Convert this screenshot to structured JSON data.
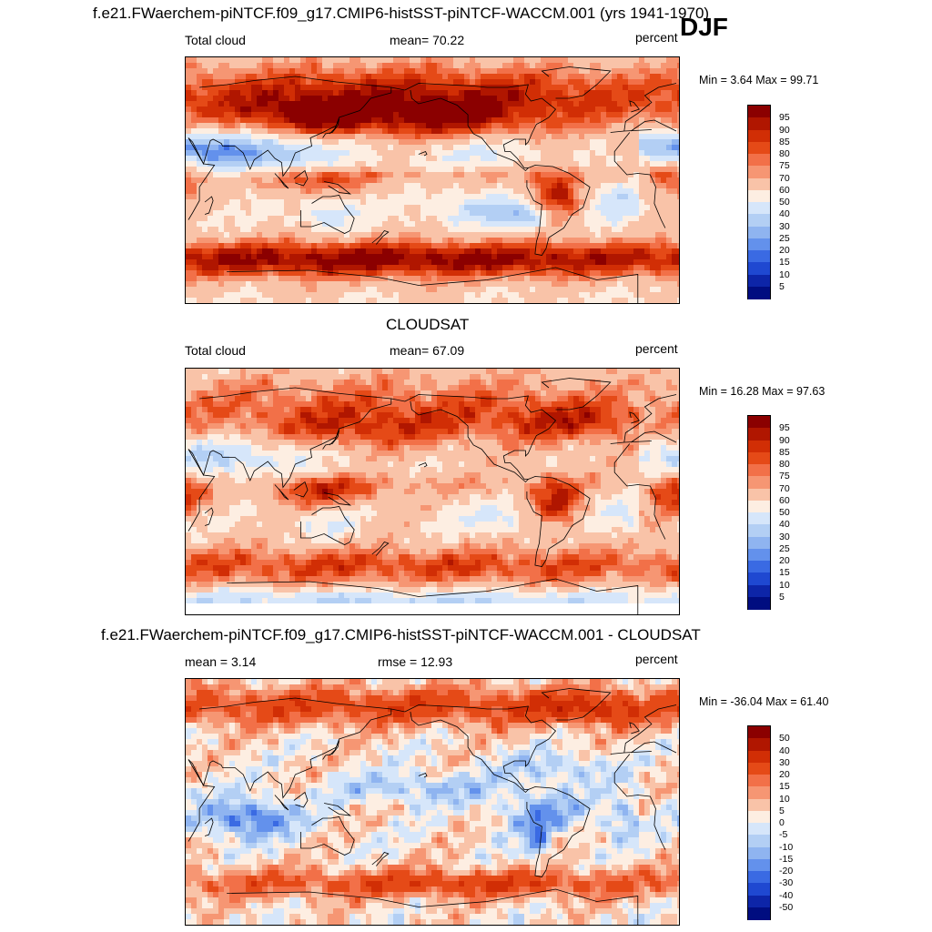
{
  "season_label": "DJF",
  "panels": [
    {
      "heading": "f.e21.FWaerchem-piNTCF.f09_g17.CMIP6-histSST-piNTCF-WACCM.001 (yrs 1941-1970)",
      "left_label": "Total cloud",
      "center_label": "mean=  70.22",
      "units": "percent",
      "minmax": "Min =   3.64 Max =  99.71"
    },
    {
      "heading": "CLOUDSAT",
      "left_label": "Total cloud",
      "center_label": "mean=  67.09",
      "units": "percent",
      "minmax": "Min =  16.28 Max =  97.63"
    },
    {
      "heading": "f.e21.FWaerchem-piNTCF.f09_g17.CMIP6-histSST-piNTCF-WACCM.001 - CLOUDSAT",
      "left_label": "mean =   3.14",
      "center_label": "rmse =  12.93",
      "units": "percent",
      "minmax": "Min = -36.04 Max =  61.40"
    }
  ],
  "chart_data": [
    {
      "type": "heatmap",
      "title": "Total cloud (model, DJF)",
      "field": "model",
      "units": "percent",
      "mean": 70.22,
      "min": 3.64,
      "max": 99.71,
      "levels": [
        "95",
        "90",
        "85",
        "80",
        "75",
        "70",
        "60",
        "50",
        "40",
        "30",
        "25",
        "20",
        "15",
        "10",
        "5"
      ],
      "colors": [
        "#8b0000",
        "#b01600",
        "#d12e05",
        "#e54a17",
        "#f27048",
        "#f69673",
        "#f9c3a8",
        "#fdeee2",
        "#d6e6fa",
        "#b3cff4",
        "#8fb4f0",
        "#6391ec",
        "#3a6ae3",
        "#1f48d1",
        "#0d25a8",
        "#000d80"
      ]
    },
    {
      "type": "heatmap",
      "title": "Total cloud (CLOUDSAT, DJF)",
      "field": "obs",
      "units": "percent",
      "mean": 67.09,
      "min": 16.28,
      "max": 97.63,
      "levels": [
        "95",
        "90",
        "85",
        "80",
        "75",
        "70",
        "60",
        "50",
        "40",
        "30",
        "25",
        "20",
        "15",
        "10",
        "5"
      ],
      "colors": [
        "#8b0000",
        "#b01600",
        "#d12e05",
        "#e54a17",
        "#f27048",
        "#f69673",
        "#f9c3a8",
        "#fdeee2",
        "#d6e6fa",
        "#b3cff4",
        "#8fb4f0",
        "#6391ec",
        "#3a6ae3",
        "#1f48d1",
        "#0d25a8",
        "#000d80"
      ]
    },
    {
      "type": "heatmap",
      "title": "Model - CLOUDSAT (DJF)",
      "field": "diff",
      "units": "percent",
      "mean": 3.14,
      "rmse": 12.93,
      "min": -36.04,
      "max": 61.4,
      "levels": [
        "50",
        "40",
        "30",
        "20",
        "15",
        "10",
        "5",
        "0",
        "-5",
        "-10",
        "-15",
        "-20",
        "-30",
        "-40",
        "-50"
      ],
      "colors": [
        "#8b0000",
        "#b01600",
        "#d12e05",
        "#e54a17",
        "#f27048",
        "#f69673",
        "#f9c3a8",
        "#fdeee2",
        "#d6e6fa",
        "#b3cff4",
        "#8fb4f0",
        "#6391ec",
        "#3a6ae3",
        "#1f48d1",
        "#0d25a8",
        "#000d80"
      ]
    }
  ]
}
